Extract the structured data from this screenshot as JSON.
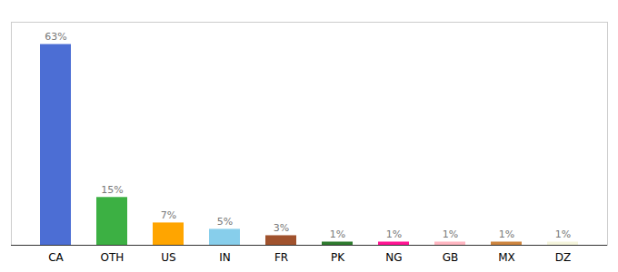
{
  "chart_data": {
    "type": "bar",
    "categories": [
      "CA",
      "OTH",
      "US",
      "IN",
      "FR",
      "PK",
      "NG",
      "GB",
      "MX",
      "DZ"
    ],
    "values": [
      63,
      15,
      7,
      5,
      3,
      1,
      1,
      1,
      1,
      1
    ],
    "value_labels": [
      "63%",
      "15%",
      "7%",
      "5%",
      "3%",
      "1%",
      "1%",
      "1%",
      "1%",
      "1%"
    ],
    "colors": [
      "#4C6ED4",
      "#3CB043",
      "#FFA500",
      "#87CEEB",
      "#A0522D",
      "#2E7B2E",
      "#FF1493",
      "#FFB6C1",
      "#CD853F",
      "#F5F5DC"
    ],
    "ylim": [
      0,
      70
    ],
    "grid": false,
    "data_labels": true,
    "tick_labels": "x"
  }
}
